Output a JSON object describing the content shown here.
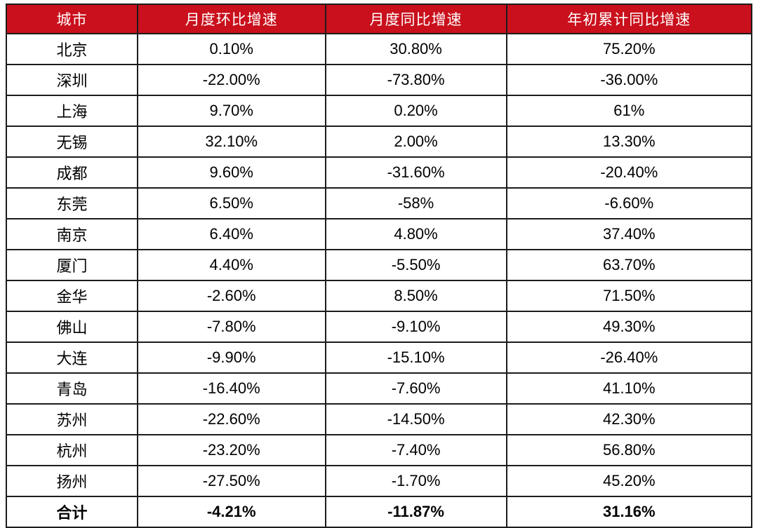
{
  "chart_data": {
    "type": "table",
    "columns": [
      "城市",
      "月度环比增速",
      "月度同比增速",
      "年初累计同比增速"
    ],
    "rows": [
      {
        "city": "北京",
        "mom": "0.10%",
        "yoy": "30.80%",
        "ytd": "75.20%"
      },
      {
        "city": "深圳",
        "mom": "-22.00%",
        "yoy": "-73.80%",
        "ytd": "-36.00%"
      },
      {
        "city": "上海",
        "mom": "9.70%",
        "yoy": "0.20%",
        "ytd": "61%"
      },
      {
        "city": "无锡",
        "mom": "32.10%",
        "yoy": "2.00%",
        "ytd": "13.30%"
      },
      {
        "city": "成都",
        "mom": "9.60%",
        "yoy": "-31.60%",
        "ytd": "-20.40%"
      },
      {
        "city": "东莞",
        "mom": "6.50%",
        "yoy": "-58%",
        "ytd": "-6.60%"
      },
      {
        "city": "南京",
        "mom": "6.40%",
        "yoy": "4.80%",
        "ytd": "37.40%"
      },
      {
        "city": "厦门",
        "mom": "4.40%",
        "yoy": "-5.50%",
        "ytd": "63.70%"
      },
      {
        "city": "金华",
        "mom": "-2.60%",
        "yoy": "8.50%",
        "ytd": "71.50%"
      },
      {
        "city": "佛山",
        "mom": "-7.80%",
        "yoy": "-9.10%",
        "ytd": "49.30%"
      },
      {
        "city": "大连",
        "mom": "-9.90%",
        "yoy": "-15.10%",
        "ytd": "-26.40%"
      },
      {
        "city": "青岛",
        "mom": "-16.40%",
        "yoy": "-7.60%",
        "ytd": "41.10%"
      },
      {
        "city": "苏州",
        "mom": "-22.60%",
        "yoy": "-14.50%",
        "ytd": "42.30%"
      },
      {
        "city": "杭州",
        "mom": "-23.20%",
        "yoy": "-7.40%",
        "ytd": "56.80%"
      },
      {
        "city": "扬州",
        "mom": "-27.50%",
        "yoy": "-1.70%",
        "ytd": "45.20%"
      }
    ],
    "total_row": {
      "city": "合计",
      "mom": "-4.21%",
      "yoy": "-11.87%",
      "ytd": "31.16%"
    },
    "colors": {
      "header_bg": "#C9101C",
      "header_text": "#FFFFFF",
      "body_text": "#000000",
      "border": "#1C1C1C"
    }
  }
}
